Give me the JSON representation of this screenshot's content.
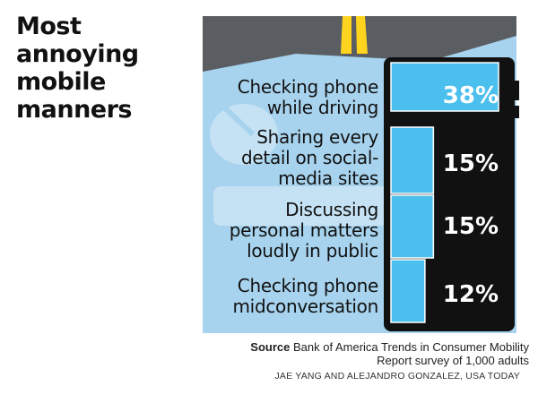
{
  "chart_data": {
    "type": "bar",
    "title_lines": [
      "Most",
      "annoying",
      "mobile",
      "manners"
    ],
    "categories": [
      [
        "Checking phone",
        "while driving"
      ],
      [
        "Sharing every",
        "detail on social-",
        "media sites"
      ],
      [
        "Discussing",
        "personal matters",
        "loudly in public"
      ],
      [
        "Checking phone",
        "midconversation"
      ]
    ],
    "values": [
      38,
      15,
      15,
      12
    ],
    "value_labels": [
      "38%",
      "15%",
      "15%",
      "12%"
    ],
    "unit": "%",
    "orientation": "horizontal",
    "ylim": [
      0,
      38
    ]
  },
  "source": {
    "label": "Source",
    "text": "Bank of America Trends in Consumer Mobility Report survey of 1,000 adults"
  },
  "credit": "JAE YANG AND ALEJANDRO GONZALEZ, USA TODAY",
  "colors": {
    "sky": "#a7d3ee",
    "road": "#5a5d61",
    "road_line": "#ffd41f",
    "phone": "#111111",
    "bar": "#4bbfee",
    "bar_outline": "#ffffff"
  }
}
